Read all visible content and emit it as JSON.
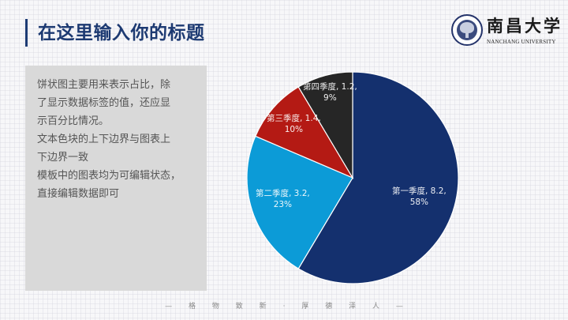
{
  "header": {
    "title": "在这里输入你的标题"
  },
  "logo": {
    "name_cn": "南昌大学",
    "name_en": "NANCHANG UNIVERSITY"
  },
  "text_block": {
    "lines": [
      "饼状图主要用来表示占比，除",
      "了显示数据标签的值，还应显",
      "示百分比情况。",
      "文本色块的上下边界与图表上",
      "下边界一致",
      "模板中的图表均为可编辑状态，",
      "直接编辑数据即可"
    ]
  },
  "footer": {
    "chars": [
      "—",
      "格",
      "物",
      "致",
      "新",
      "·",
      "厚",
      "德",
      "泽",
      "人",
      "—"
    ]
  },
  "chart_data": {
    "type": "pie",
    "title": "",
    "start_angle_deg": 0,
    "direction": "clockwise",
    "categories": [
      "第一季度",
      "第二季度",
      "第三季度",
      "第四季度"
    ],
    "values": [
      8.2,
      3.2,
      1.4,
      1.2
    ],
    "percentages": [
      "58%",
      "23%",
      "10%",
      "9%"
    ],
    "colors": [
      "#14306e",
      "#0c9bd7",
      "#b41a14",
      "#262626"
    ],
    "labels": [
      {
        "line1": "第一季度, 8.2,",
        "line2": "58%"
      },
      {
        "line1": "第二季度, 3.2,",
        "line2": "23%"
      },
      {
        "line1": "第三季度, 1.4,",
        "line2": "10%"
      },
      {
        "line1": "第四季度, 1.2,",
        "line2": "9%"
      }
    ],
    "legend": "none",
    "data_labels": "inside (category, value, percent)"
  }
}
